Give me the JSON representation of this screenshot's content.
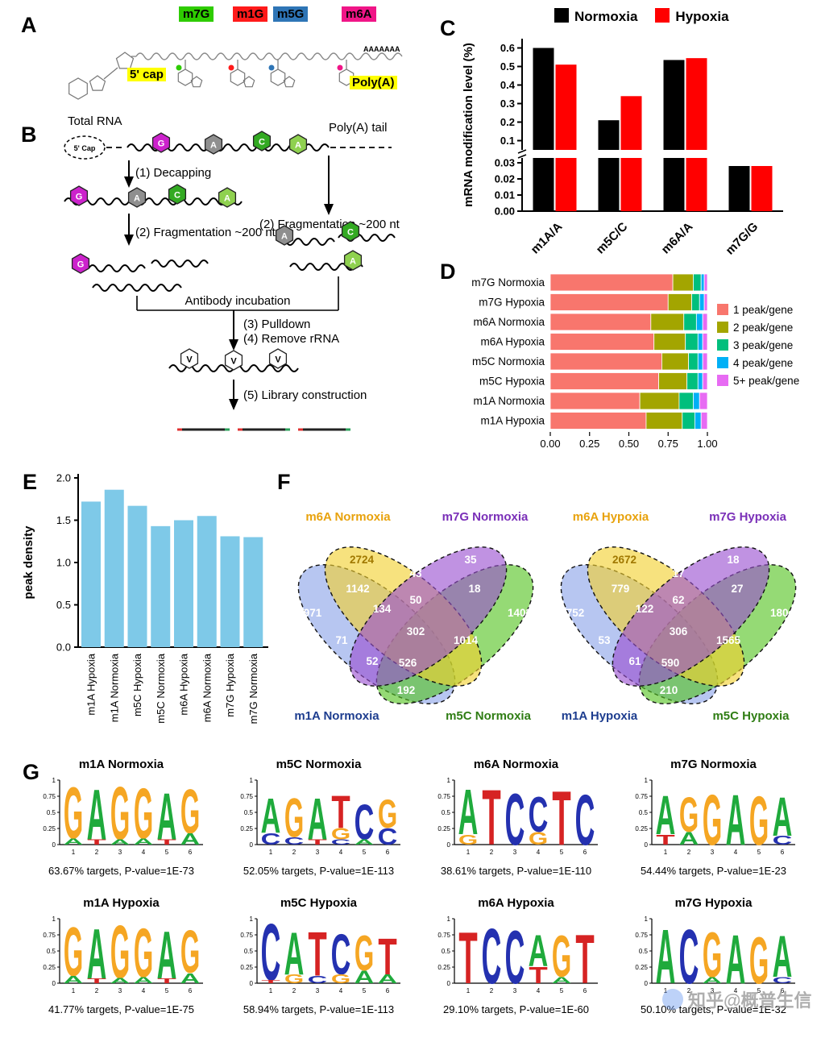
{
  "panels": {
    "a": {
      "label": "A",
      "mods": [
        {
          "label": "m7G",
          "bg": "#2ecc00"
        },
        {
          "label": "m1G",
          "bg": "#ff1a1a"
        },
        {
          "label": "m5G",
          "bg": "#2e75b6"
        },
        {
          "label": "m6A",
          "bg": "#f01587"
        }
      ],
      "cap_label": "5' cap",
      "polya_label": "Poly(A)",
      "tail_text": "AAAAAAA"
    },
    "b": {
      "label": "B",
      "total_rna": "Total RNA",
      "cap_text": "5' Cap",
      "polya_tail": "Poly(A) tail",
      "step1": "(1) Decapping",
      "step2_left": "(2) Fragmentation ~200 nt",
      "step2_right": "(2) Fragmentation ~200 nt",
      "antibody_incubation": "Antibody incubation",
      "step3": "(3) Pulldown",
      "step4": "(4) Remove rRNA",
      "step5": "(5) Library construction",
      "bases": {
        "g": "G",
        "a": "A",
        "c": "C",
        "a2": "A",
        "v": "V"
      },
      "base_colors": {
        "g": "#cc22cc",
        "a": "#8f8f8f",
        "c": "#33aa22",
        "a2": "#8fd14f"
      }
    },
    "c": {
      "label": "C"
    },
    "d": {
      "label": "D"
    },
    "e": {
      "label": "E"
    },
    "f": {
      "label": "F"
    },
    "g": {
      "label": "G"
    }
  },
  "watermark": {
    "text": "知乎@概普生信"
  },
  "chart_data": [
    {
      "id": "panelC",
      "type": "bar",
      "ylabel": "mRNA modification level (%)",
      "categories": [
        "m1A/A",
        "m5C/C",
        "m6A/A",
        "m7G/G"
      ],
      "series": [
        {
          "name": "Normoxia",
          "color": "#000000",
          "values": [
            0.6,
            0.21,
            0.535,
            0.028
          ]
        },
        {
          "name": "Hypoxia",
          "color": "#ff0000",
          "values": [
            0.51,
            0.34,
            0.545,
            0.028
          ]
        }
      ],
      "axis_break": true,
      "upper_ticks": [
        "0.6",
        "0.5",
        "0.4",
        "0.3",
        "0.2",
        "0.1"
      ],
      "lower_ticks": [
        "0.03",
        "0.02",
        "0.01",
        "0.00"
      ],
      "upper_range": [
        0.05,
        0.65
      ],
      "lower_range": [
        0,
        0.033
      ]
    },
    {
      "id": "panelD",
      "type": "stacked_bar_h",
      "categories": [
        "m7G Normoxia",
        "m7G Hypoxia",
        "m6A Normoxia",
        "m6A Hypoxia",
        "m5C Normoxia",
        "m5C Hypoxia",
        "m1A Normoxia",
        "m1A Hypoxia"
      ],
      "legend": [
        {
          "label": "1 peak/gene",
          "color": "#F8766D"
        },
        {
          "label": "2 peak/gene",
          "color": "#A3A500"
        },
        {
          "label": "3 peak/gene",
          "color": "#00BF7D"
        },
        {
          "label": "4 peak/gene",
          "color": "#00B0F6"
        },
        {
          "label": "5+ peak/gene",
          "color": "#E76BF3"
        }
      ],
      "xticks": [
        "0.00",
        "0.25",
        "0.50",
        "0.75",
        "1.00"
      ],
      "rows": [
        [
          0.78,
          0.13,
          0.05,
          0.02,
          0.02
        ],
        [
          0.75,
          0.15,
          0.05,
          0.03,
          0.02
        ],
        [
          0.64,
          0.21,
          0.08,
          0.04,
          0.03
        ],
        [
          0.66,
          0.2,
          0.08,
          0.03,
          0.03
        ],
        [
          0.71,
          0.17,
          0.06,
          0.03,
          0.03
        ],
        [
          0.69,
          0.18,
          0.07,
          0.03,
          0.03
        ],
        [
          0.57,
          0.25,
          0.09,
          0.04,
          0.05
        ],
        [
          0.61,
          0.23,
          0.08,
          0.04,
          0.04
        ]
      ]
    },
    {
      "id": "panelE",
      "type": "bar",
      "ylabel": "peak density",
      "categories": [
        "m1A Hypoxia",
        "m1A Normoxia",
        "m5C Hypoxia",
        "m5C Normoxia",
        "m6A Hypoxia",
        "m6A Normoxia",
        "m7G Hypoxia",
        "m7G Normoxia"
      ],
      "values": [
        1.72,
        1.86,
        1.67,
        1.43,
        1.5,
        1.55,
        1.31,
        1.3
      ],
      "bar_color": "#7ec9e8",
      "yticks": [
        "0.0",
        "0.5",
        "1.0",
        "1.5",
        "2.0"
      ],
      "ylim": [
        0,
        2.0
      ]
    },
    {
      "id": "vennNormoxia",
      "type": "venn4",
      "sets": [
        {
          "key": "m6A",
          "name": "m6A Normoxia",
          "label_color": "#e8a20c",
          "fill": "#f2d12e"
        },
        {
          "key": "m7G",
          "name": "m7G Normoxia",
          "label_color": "#7a2fb8",
          "fill": "#9a4fd0"
        },
        {
          "key": "m1A",
          "name": "m1A Normoxia",
          "label_color": "#1d3d8f",
          "fill": "#8ba3e8"
        },
        {
          "key": "m5C",
          "name": "m5C Normoxia",
          "label_color": "#2f7d14",
          "fill": "#54c421"
        }
      ],
      "regions": {
        "m6A": "2724",
        "m7G": "35",
        "m1A": "971",
        "m5C": "1403",
        "m6A_m7G": "43",
        "m6A_m1A": "1142",
        "m7G_m5C": "18",
        "m1A_m7G": "71",
        "m6A_m5C": "1014",
        "m1A_m5C": "192",
        "m6A_m7G_m1A": "134",
        "m6A_m7G_m5C": "50",
        "m1A_m6A_m5C": "526",
        "m1A_m7G_m5C": "52",
        "all": "302"
      }
    },
    {
      "id": "vennHypoxia",
      "type": "venn4",
      "sets": [
        {
          "key": "m6A",
          "name": "m6A Hypoxia",
          "label_color": "#e8a20c",
          "fill": "#f2d12e"
        },
        {
          "key": "m7G",
          "name": "m7G Hypoxia",
          "label_color": "#7a2fb8",
          "fill": "#9a4fd0"
        },
        {
          "key": "m1A",
          "name": "m1A Hypoxia",
          "label_color": "#1d3d8f",
          "fill": "#8ba3e8"
        },
        {
          "key": "m5C",
          "name": "m5C Hypoxia",
          "label_color": "#2f7d14",
          "fill": "#54c421"
        }
      ],
      "regions": {
        "m6A": "2672",
        "m7G": "18",
        "m1A": "752",
        "m5C": "1804",
        "m6A_m7G": "17",
        "m6A_m1A": "779",
        "m7G_m5C": "27",
        "m1A_m7G": "53",
        "m6A_m5C": "1565",
        "m1A_m5C": "210",
        "m6A_m7G_m1A": "122",
        "m6A_m7G_m5C": "62",
        "m1A_m6A_m5C": "590",
        "m1A_m7G_m5C": "61",
        "all": "306"
      }
    },
    {
      "id": "panelG",
      "type": "sequence_logos",
      "letter_colors": {
        "A": "#1faa3c",
        "C": "#2431b0",
        "G": "#f5a623",
        "T": "#d62323"
      },
      "yticks": [
        "1",
        "0.75",
        "0.5",
        "0.25",
        "0"
      ],
      "xticks": [
        "1",
        "2",
        "3",
        "4",
        "5",
        "6"
      ],
      "logos": [
        {
          "title": "m1A Normoxia",
          "caption": "63.67% targets, P-value=1E-73",
          "stacks": [
            [
              [
                "G",
                0.82
              ],
              [
                "A",
                0.1
              ]
            ],
            [
              [
                "A",
                0.8
              ],
              [
                "T",
                0.08
              ]
            ],
            [
              [
                "G",
                0.84
              ],
              [
                "A",
                0.08
              ]
            ],
            [
              [
                "G",
                0.8
              ],
              [
                "A",
                0.1
              ]
            ],
            [
              [
                "A",
                0.74
              ],
              [
                "T",
                0.08
              ]
            ],
            [
              [
                "G",
                0.7
              ],
              [
                "A",
                0.18
              ]
            ]
          ]
        },
        {
          "title": "m5C Normoxia",
          "caption": "52.05% targets, P-value=1E-113",
          "stacks": [
            [
              [
                "A",
                0.55
              ],
              [
                "C",
                0.18
              ]
            ],
            [
              [
                "G",
                0.62
              ],
              [
                "C",
                0.12
              ]
            ],
            [
              [
                "A",
                0.66
              ],
              [
                "T",
                0.08
              ]
            ],
            [
              [
                "T",
                0.52
              ],
              [
                "G",
                0.18
              ],
              [
                "C",
                0.08
              ]
            ],
            [
              [
                "C",
                0.56
              ],
              [
                "A",
                0.08
              ]
            ],
            [
              [
                "G",
                0.45
              ],
              [
                "C",
                0.26
              ]
            ]
          ]
        },
        {
          "title": "m6A Normoxia",
          "caption": "38.61% targets, P-value=1E-110",
          "stacks": [
            [
              [
                "A",
                0.72
              ],
              [
                "G",
                0.16
              ]
            ],
            [
              [
                "T",
                0.88
              ]
            ],
            [
              [
                "C",
                0.82
              ]
            ],
            [
              [
                "C",
                0.56
              ],
              [
                "G",
                0.2
              ]
            ],
            [
              [
                "T",
                0.86
              ]
            ],
            [
              [
                "C",
                0.8
              ]
            ]
          ]
        },
        {
          "title": "m7G Normoxia",
          "caption": "54.44% targets, P-value=1E-23",
          "stacks": [
            [
              [
                "A",
                0.62
              ],
              [
                "T",
                0.16
              ]
            ],
            [
              [
                "G",
                0.55
              ],
              [
                "A",
                0.2
              ]
            ],
            [
              [
                "G",
                0.8
              ]
            ],
            [
              [
                "A",
                0.8
              ]
            ],
            [
              [
                "G",
                0.78
              ]
            ],
            [
              [
                "A",
                0.62
              ],
              [
                "C",
                0.14
              ]
            ]
          ]
        },
        {
          "title": "m1A Hypoxia",
          "caption": "41.77% targets, P-value=1E-75",
          "stacks": [
            [
              [
                "G",
                0.78
              ],
              [
                "A",
                0.12
              ]
            ],
            [
              [
                "A",
                0.8
              ],
              [
                "T",
                0.07
              ]
            ],
            [
              [
                "G",
                0.84
              ],
              [
                "A",
                0.08
              ]
            ],
            [
              [
                "G",
                0.78
              ],
              [
                "A",
                0.1
              ]
            ],
            [
              [
                "A",
                0.76
              ],
              [
                "T",
                0.07
              ]
            ],
            [
              [
                "G",
                0.68
              ],
              [
                "A",
                0.16
              ]
            ]
          ]
        },
        {
          "title": "m5C Hypoxia",
          "caption": "58.94% targets, P-value=1E-113",
          "stacks": [
            [
              [
                "C",
                0.9
              ],
              [
                "T",
                0.05
              ]
            ],
            [
              [
                "A",
                0.68
              ],
              [
                "G",
                0.14
              ]
            ],
            [
              [
                "T",
                0.7
              ],
              [
                "C",
                0.12
              ]
            ],
            [
              [
                "C",
                0.64
              ],
              [
                "G",
                0.14
              ]
            ],
            [
              [
                "G",
                0.56
              ],
              [
                "A",
                0.2
              ]
            ],
            [
              [
                "T",
                0.58
              ],
              [
                "A",
                0.14
              ]
            ]
          ]
        },
        {
          "title": "m6A Hypoxia",
          "caption": "29.10% targets, P-value=1E-60",
          "stacks": [
            [
              [
                "T",
                0.82
              ]
            ],
            [
              [
                "C",
                0.88
              ]
            ],
            [
              [
                "C",
                0.84
              ]
            ],
            [
              [
                "A",
                0.5
              ],
              [
                "T",
                0.26
              ]
            ],
            [
              [
                "G",
                0.66
              ],
              [
                "A",
                0.1
              ]
            ],
            [
              [
                "T",
                0.78
              ]
            ]
          ]
        },
        {
          "title": "m7G Hypoxia",
          "caption": "50.10% targets, P-value=1E-32",
          "stacks": [
            [
              [
                "A",
                0.86
              ]
            ],
            [
              [
                "C",
                0.86
              ]
            ],
            [
              [
                "G",
                0.72
              ],
              [
                "A",
                0.1
              ]
            ],
            [
              [
                "A",
                0.78
              ]
            ],
            [
              [
                "G",
                0.74
              ]
            ],
            [
              [
                "A",
                0.66
              ],
              [
                "C",
                0.1
              ]
            ]
          ]
        }
      ]
    }
  ]
}
